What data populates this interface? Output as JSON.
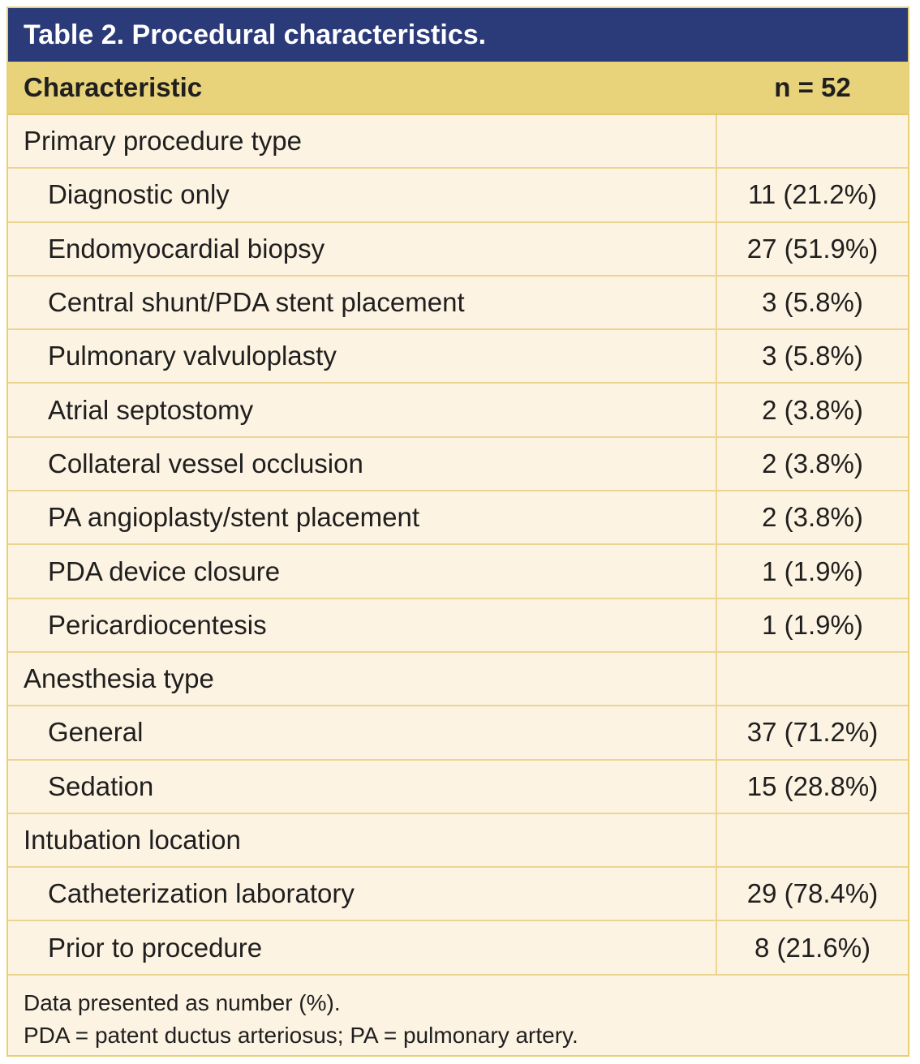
{
  "table": {
    "title": "Table 2. Procedural characteristics.",
    "header": {
      "characteristic": "Characteristic",
      "n": "n = 52"
    },
    "rows": [
      {
        "label": "Primary procedure type",
        "value": "",
        "level": 0
      },
      {
        "label": "Diagnostic only",
        "value": "11 (21.2%)",
        "level": 1
      },
      {
        "label": "Endomyocardial biopsy",
        "value": "27 (51.9%)",
        "level": 1
      },
      {
        "label": "Central shunt/PDA stent placement",
        "value": "3 (5.8%)",
        "level": 1
      },
      {
        "label": "Pulmonary valvuloplasty",
        "value": "3 (5.8%)",
        "level": 1
      },
      {
        "label": "Atrial septostomy",
        "value": "2 (3.8%)",
        "level": 1
      },
      {
        "label": "Collateral vessel occlusion",
        "value": "2 (3.8%)",
        "level": 1
      },
      {
        "label": "PA angioplasty/stent placement",
        "value": "2 (3.8%)",
        "level": 1
      },
      {
        "label": "PDA device closure",
        "value": "1 (1.9%)",
        "level": 1
      },
      {
        "label": "Pericardiocentesis",
        "value": "1 (1.9%)",
        "level": 1
      },
      {
        "label": "Anesthesia type",
        "value": "",
        "level": 0
      },
      {
        "label": "General",
        "value": "37 (71.2%)",
        "level": 1
      },
      {
        "label": "Sedation",
        "value": "15 (28.8%)",
        "level": 1
      },
      {
        "label": "Intubation location",
        "value": "",
        "level": 0
      },
      {
        "label": "Catheterization laboratory",
        "value": "29 (78.4%)",
        "level": 1
      },
      {
        "label": "Prior to procedure",
        "value": "8 (21.6%)",
        "level": 1
      }
    ],
    "footnotes": [
      "Data presented as number (%).",
      "PDA = patent ductus arteriosus; PA = pulmonary artery."
    ]
  },
  "colors": {
    "title_bg": "#2b3a78",
    "header_bg": "#e8d27a",
    "body_bg": "#fdf3e2",
    "grid": "#ecd592"
  }
}
